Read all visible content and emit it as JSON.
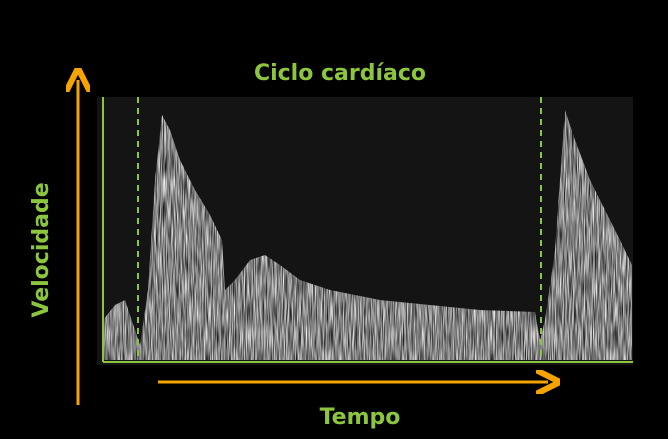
{
  "title": "Ciclo cardíaco",
  "y_axis_label": "Velocidade",
  "x_axis_label": "Tempo"
}
